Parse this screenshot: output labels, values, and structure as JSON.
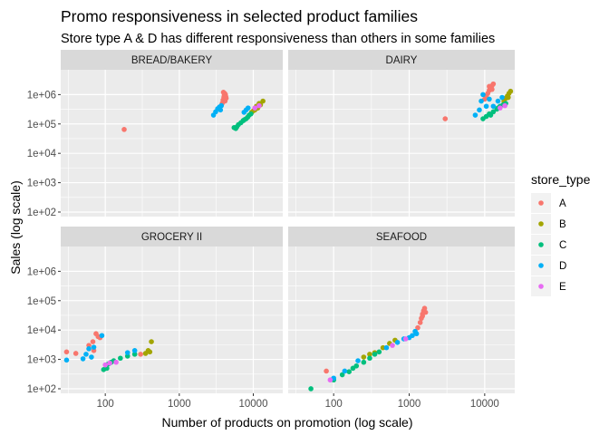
{
  "title": "Promo responsiveness in selected product families",
  "subtitle": "Store type A & D has different responsiveness than others in some families",
  "chart_data": {
    "type": "scatter",
    "facet_layout": "2x2",
    "x_scale": "log",
    "y_scale": "log",
    "xlabel": "Number of products on promotion (log scale)",
    "ylabel": "Sales (log scale)",
    "xlim": [
      25,
      25000
    ],
    "ylim": [
      70,
      7000000
    ],
    "x_ticks": [
      {
        "value": 100,
        "label": "100"
      },
      {
        "value": 1000,
        "label": "1000"
      },
      {
        "value": 10000,
        "label": "10000"
      }
    ],
    "y_ticks": [
      {
        "value": 100,
        "label": "1e+02"
      },
      {
        "value": 1000,
        "label": "1e+03"
      },
      {
        "value": 10000,
        "label": "1e+04"
      },
      {
        "value": 100000,
        "label": "1e+05"
      },
      {
        "value": 1000000,
        "label": "1e+06"
      }
    ],
    "grid": true,
    "legend_position": "right",
    "legend": {
      "title": "store_type",
      "entries": [
        {
          "label": "A",
          "color": "#F8766D"
        },
        {
          "label": "B",
          "color": "#A3A500"
        },
        {
          "label": "C",
          "color": "#00BF7D"
        },
        {
          "label": "D",
          "color": "#00B0F6"
        },
        {
          "label": "E",
          "color": "#E76BF3"
        }
      ]
    },
    "panels": [
      {
        "name": "BREAD/BAKERY",
        "series": [
          {
            "name": "A",
            "points": [
              [
                180,
                65000
              ],
              [
                3800,
                500000
              ],
              [
                3900,
                650000
              ],
              [
                4000,
                800000
              ],
              [
                4050,
                950000
              ],
              [
                4100,
                1100000
              ],
              [
                4200,
                1000000
              ],
              [
                4300,
                750000
              ],
              [
                4150,
                600000
              ],
              [
                3950,
                1200000
              ],
              [
                4250,
                850000
              ]
            ]
          },
          {
            "name": "B",
            "points": [
              [
                9500,
                250000
              ],
              [
                10500,
                300000
              ],
              [
                11500,
                350000
              ],
              [
                12500,
                450000
              ],
              [
                13500,
                600000
              ],
              [
                11000,
                400000
              ],
              [
                12000,
                500000
              ],
              [
                10000,
                280000
              ]
            ]
          },
          {
            "name": "C",
            "points": [
              [
                5500,
                75000
              ],
              [
                6000,
                80000
              ],
              [
                6300,
                95000
              ],
              [
                6800,
                110000
              ],
              [
                7300,
                130000
              ],
              [
                8000,
                150000
              ],
              [
                8800,
                200000
              ],
              [
                9300,
                220000
              ],
              [
                5800,
                70000
              ],
              [
                7600,
                140000
              ],
              [
                8400,
                170000
              ]
            ]
          },
          {
            "name": "D",
            "points": [
              [
                2900,
                200000
              ],
              [
                3100,
                260000
              ],
              [
                3300,
                330000
              ],
              [
                3500,
                380000
              ],
              [
                7500,
                250000
              ],
              [
                8000,
                300000
              ],
              [
                3700,
                420000
              ],
              [
                8500,
                350000
              ],
              [
                3600,
                300000
              ]
            ]
          },
          {
            "name": "E",
            "points": [
              [
                10500,
                350000
              ],
              [
                12000,
                420000
              ]
            ]
          }
        ]
      },
      {
        "name": "DAIRY",
        "series": [
          {
            "name": "A",
            "points": [
              [
                3000,
                150000
              ],
              [
                10000,
                700000
              ],
              [
                10500,
                900000
              ],
              [
                11000,
                1100000
              ],
              [
                11500,
                1400000
              ],
              [
                12000,
                1700000
              ],
              [
                12500,
                2000000
              ],
              [
                13000,
                2300000
              ],
              [
                11500,
                1900000
              ],
              [
                12500,
                1500000
              ]
            ]
          },
          {
            "name": "B",
            "points": [
              [
                18000,
                600000
              ],
              [
                19000,
                750000
              ],
              [
                20000,
                900000
              ],
              [
                21000,
                1100000
              ],
              [
                22000,
                1300000
              ],
              [
                20500,
                800000
              ]
            ]
          },
          {
            "name": "C",
            "points": [
              [
                9500,
                150000
              ],
              [
                10500,
                180000
              ],
              [
                11500,
                220000
              ],
              [
                13000,
                260000
              ],
              [
                14500,
                320000
              ],
              [
                16000,
                400000
              ],
              [
                17500,
                450000
              ],
              [
                19000,
                500000
              ],
              [
                12000,
                200000
              ],
              [
                15000,
                350000
              ]
            ]
          },
          {
            "name": "D",
            "points": [
              [
                7500,
                200000
              ],
              [
                8500,
                300000
              ],
              [
                9000,
                600000
              ],
              [
                9500,
                1000000
              ],
              [
                13000,
                400000
              ],
              [
                15000,
                600000
              ],
              [
                17000,
                800000
              ],
              [
                10500,
                400000
              ],
              [
                11500,
                700000
              ]
            ]
          },
          {
            "name": "E",
            "points": [
              [
                16000,
                350000
              ],
              [
                18500,
                420000
              ]
            ]
          }
        ]
      },
      {
        "name": "GROCERY II",
        "series": [
          {
            "name": "A",
            "points": [
              [
                30,
                1800
              ],
              [
                40,
                1600
              ],
              [
                60,
                3000
              ],
              [
                68,
                4000
              ],
              [
                75,
                7500
              ],
              [
                80,
                6000
              ],
              [
                85,
                5500
              ],
              [
                70,
                2000
              ],
              [
                300,
                1500
              ]
            ]
          },
          {
            "name": "B",
            "points": [
              [
                350,
                1600
              ],
              [
                380,
                2000
              ],
              [
                420,
                4000
              ],
              [
                400,
                1800
              ]
            ]
          },
          {
            "name": "C",
            "points": [
              [
                95,
                450
              ],
              [
                105,
                500
              ],
              [
                110,
                700
              ],
              [
                130,
                900
              ],
              [
                160,
                1100
              ],
              [
                200,
                1300
              ],
              [
                250,
                1500
              ],
              [
                120,
                800
              ]
            ]
          },
          {
            "name": "D",
            "points": [
              [
                30,
                950
              ],
              [
                50,
                1050
              ],
              [
                55,
                1500
              ],
              [
                60,
                2300
              ],
              [
                70,
                2600
              ],
              [
                90,
                6500
              ],
              [
                200,
                1700
              ],
              [
                250,
                2000
              ],
              [
                65,
                1200
              ]
            ]
          },
          {
            "name": "E",
            "points": [
              [
                100,
                650
              ],
              [
                115,
                750
              ],
              [
                140,
                800
              ]
            ]
          }
        ]
      },
      {
        "name": "SEAFOOD",
        "series": [
          {
            "name": "A",
            "points": [
              [
                80,
                400
              ],
              [
                1300,
                12000
              ],
              [
                1400,
                18000
              ],
              [
                1450,
                25000
              ],
              [
                1500,
                35000
              ],
              [
                1550,
                45000
              ],
              [
                1600,
                55000
              ],
              [
                1500,
                30000
              ],
              [
                1650,
                40000
              ]
            ]
          },
          {
            "name": "B",
            "points": [
              [
                250,
                1200
              ],
              [
                350,
                1700
              ],
              [
                450,
                2500
              ],
              [
                550,
                3500
              ],
              [
                650,
                4500
              ],
              [
                300,
                1500
              ]
            ]
          },
          {
            "name": "C",
            "points": [
              [
                50,
                100
              ],
              [
                100,
                200
              ],
              [
                130,
                300
              ],
              [
                160,
                380
              ],
              [
                200,
                600
              ],
              [
                250,
                800
              ],
              [
                300,
                1100
              ],
              [
                350,
                1500
              ],
              [
                400,
                1800
              ],
              [
                180,
                500
              ]
            ]
          },
          {
            "name": "D",
            "points": [
              [
                100,
                230
              ],
              [
                140,
                400
              ],
              [
                210,
                900
              ],
              [
                500,
                2500
              ],
              [
                700,
                3800
              ],
              [
                850,
                5000
              ],
              [
                1100,
                6500
              ],
              [
                1200,
                9000
              ],
              [
                1250,
                7500
              ],
              [
                1000,
                5500
              ]
            ]
          },
          {
            "name": "E",
            "points": [
              [
                90,
                200
              ],
              [
                600,
                3000
              ],
              [
                900,
                5000
              ]
            ]
          }
        ]
      }
    ]
  }
}
